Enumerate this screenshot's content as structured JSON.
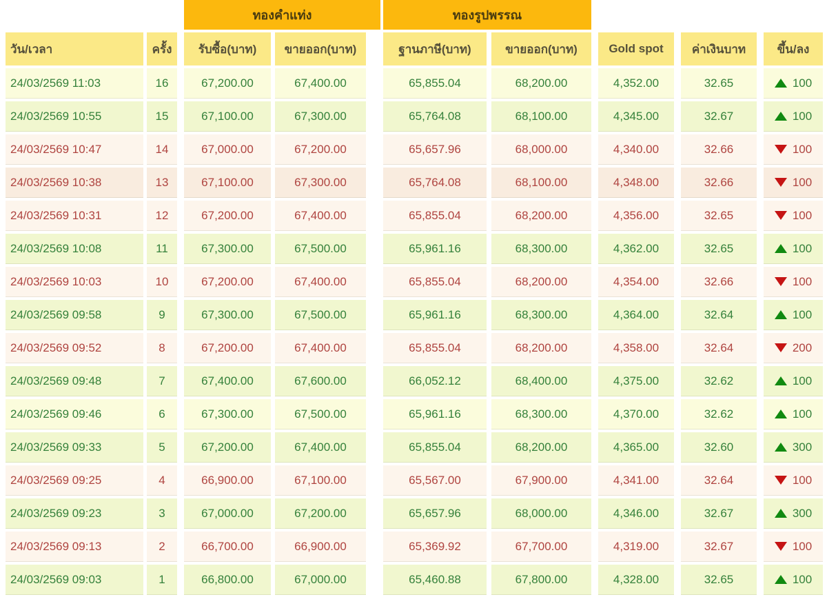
{
  "table": {
    "group_headers": [
      {
        "label": "ทองคำแท่ง"
      },
      {
        "label": "ทองรูปพรรณ"
      }
    ],
    "columns": [
      "วัน/เวลา",
      "ครั้ง",
      "รับซื้อ(บาท)",
      "ขายออก(บาท)",
      "ฐานภาษี(บาท)",
      "ขายออก(บาท)",
      "Gold spot",
      "ค่าเงินบาท",
      "ขึ้น/ลง"
    ],
    "rows": [
      {
        "date": "24/03/2569 11:03",
        "round": "16",
        "buy": "67,200.00",
        "sell": "67,400.00",
        "tax_base": "65,855.04",
        "orn_sell": "68,200.00",
        "gold_spot": "4,352.00",
        "baht": "32.65",
        "direction": "up",
        "change": "100"
      },
      {
        "date": "24/03/2569 10:55",
        "round": "15",
        "buy": "67,100.00",
        "sell": "67,300.00",
        "tax_base": "65,764.08",
        "orn_sell": "68,100.00",
        "gold_spot": "4,345.00",
        "baht": "32.67",
        "direction": "up",
        "change": "100"
      },
      {
        "date": "24/03/2569 10:47",
        "round": "14",
        "buy": "67,000.00",
        "sell": "67,200.00",
        "tax_base": "65,657.96",
        "orn_sell": "68,000.00",
        "gold_spot": "4,340.00",
        "baht": "32.66",
        "direction": "down",
        "change": "100"
      },
      {
        "date": "24/03/2569 10:38",
        "round": "13",
        "buy": "67,100.00",
        "sell": "67,300.00",
        "tax_base": "65,764.08",
        "orn_sell": "68,100.00",
        "gold_spot": "4,348.00",
        "baht": "32.66",
        "direction": "down",
        "change": "100"
      },
      {
        "date": "24/03/2569 10:31",
        "round": "12",
        "buy": "67,200.00",
        "sell": "67,400.00",
        "tax_base": "65,855.04",
        "orn_sell": "68,200.00",
        "gold_spot": "4,356.00",
        "baht": "32.65",
        "direction": "down",
        "change": "100"
      },
      {
        "date": "24/03/2569 10:08",
        "round": "11",
        "buy": "67,300.00",
        "sell": "67,500.00",
        "tax_base": "65,961.16",
        "orn_sell": "68,300.00",
        "gold_spot": "4,362.00",
        "baht": "32.65",
        "direction": "up",
        "change": "100"
      },
      {
        "date": "24/03/2569 10:03",
        "round": "10",
        "buy": "67,200.00",
        "sell": "67,400.00",
        "tax_base": "65,855.04",
        "orn_sell": "68,200.00",
        "gold_spot": "4,354.00",
        "baht": "32.66",
        "direction": "down",
        "change": "100"
      },
      {
        "date": "24/03/2569 09:58",
        "round": "9",
        "buy": "67,300.00",
        "sell": "67,500.00",
        "tax_base": "65,961.16",
        "orn_sell": "68,300.00",
        "gold_spot": "4,364.00",
        "baht": "32.64",
        "direction": "up",
        "change": "100"
      },
      {
        "date": "24/03/2569 09:52",
        "round": "8",
        "buy": "67,200.00",
        "sell": "67,400.00",
        "tax_base": "65,855.04",
        "orn_sell": "68,200.00",
        "gold_spot": "4,358.00",
        "baht": "32.64",
        "direction": "down",
        "change": "200"
      },
      {
        "date": "24/03/2569 09:48",
        "round": "7",
        "buy": "67,400.00",
        "sell": "67,600.00",
        "tax_base": "66,052.12",
        "orn_sell": "68,400.00",
        "gold_spot": "4,375.00",
        "baht": "32.62",
        "direction": "up",
        "change": "100"
      },
      {
        "date": "24/03/2569 09:46",
        "round": "6",
        "buy": "67,300.00",
        "sell": "67,500.00",
        "tax_base": "65,961.16",
        "orn_sell": "68,300.00",
        "gold_spot": "4,370.00",
        "baht": "32.62",
        "direction": "up",
        "change": "100"
      },
      {
        "date": "24/03/2569 09:33",
        "round": "5",
        "buy": "67,200.00",
        "sell": "67,400.00",
        "tax_base": "65,855.04",
        "orn_sell": "68,200.00",
        "gold_spot": "4,365.00",
        "baht": "32.60",
        "direction": "up",
        "change": "300"
      },
      {
        "date": "24/03/2569 09:25",
        "round": "4",
        "buy": "66,900.00",
        "sell": "67,100.00",
        "tax_base": "65,567.00",
        "orn_sell": "67,900.00",
        "gold_spot": "4,341.00",
        "baht": "32.64",
        "direction": "down",
        "change": "100"
      },
      {
        "date": "24/03/2569 09:23",
        "round": "3",
        "buy": "67,000.00",
        "sell": "67,200.00",
        "tax_base": "65,657.96",
        "orn_sell": "68,000.00",
        "gold_spot": "4,346.00",
        "baht": "32.67",
        "direction": "up",
        "change": "300"
      },
      {
        "date": "24/03/2569 09:13",
        "round": "2",
        "buy": "66,700.00",
        "sell": "66,900.00",
        "tax_base": "65,369.92",
        "orn_sell": "67,700.00",
        "gold_spot": "4,319.00",
        "baht": "32.67",
        "direction": "down",
        "change": "100"
      },
      {
        "date": "24/03/2569 09:03",
        "round": "1",
        "buy": "66,800.00",
        "sell": "67,000.00",
        "tax_base": "65,460.88",
        "orn_sell": "67,800.00",
        "gold_spot": "4,328.00",
        "baht": "32.65",
        "direction": "up",
        "change": "100"
      }
    ]
  },
  "colors": {
    "band_bg": "#fcb80d",
    "header_bg": "#fbe987",
    "up_text": "#35813b",
    "down_text": "#af4440",
    "up_arrow": "#118a11",
    "down_arrow": "#c51414",
    "up_row_bg_a": "#fbfcdc",
    "up_row_bg_b": "#f1f7cf",
    "down_row_bg_a": "#fdf5ec",
    "down_row_bg_b": "#f9ecdf"
  }
}
